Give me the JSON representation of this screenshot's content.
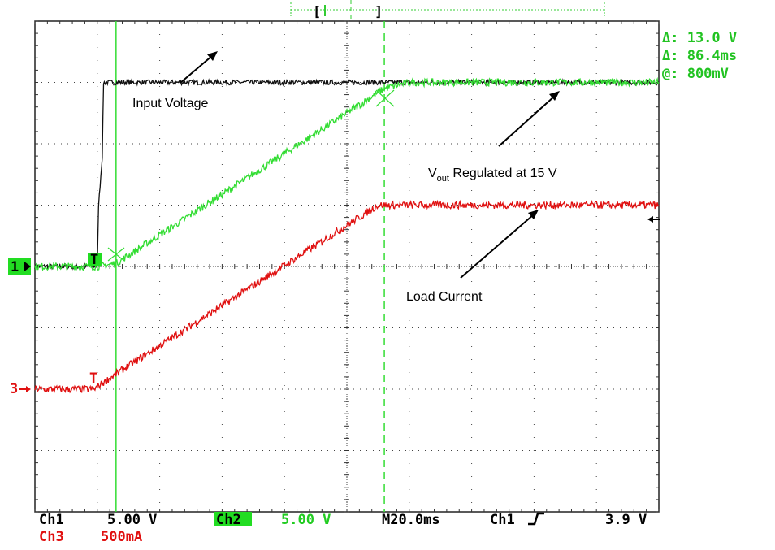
{
  "chart_data": {
    "type": "line",
    "x_divisions": 10,
    "y_divisions": 8,
    "series": [
      {
        "name": "Ch1",
        "color": "#111111",
        "x": [
          0,
          1.0,
          1.02,
          1.08,
          1.1,
          10
        ],
        "y": [
          4.0,
          4.0,
          5.0,
          5.8,
          7.0,
          7.0
        ]
      },
      {
        "name": "Ch2",
        "color": "#33dd33",
        "x": [
          0,
          1.0,
          1.3,
          5.6,
          6.0,
          10
        ],
        "y": [
          4.0,
          4.0,
          4.05,
          6.9,
          7.0,
          7.0
        ]
      },
      {
        "name": "Ch3",
        "color": "#e01010",
        "x": [
          0,
          0.95,
          1.3,
          5.5,
          5.9,
          10
        ],
        "y": [
          2.0,
          2.0,
          2.25,
          5.0,
          5.0,
          5.0
        ]
      }
    ],
    "noise": [
      0.04,
      0.06,
      0.06
    ],
    "cursor_vertical": 1.3,
    "cursor_dashed": 5.6,
    "ground_level": 4.0,
    "ch3_level": 2.0,
    "trigger_level": 5.0
  },
  "measurements": {
    "line1": "Δ: 13.0 V",
    "line2": "Δ: 86.4ms",
    "line3": "@: 800mV"
  },
  "annotations": {
    "input_voltage": "Input Voltage",
    "vout_main": "V",
    "vout_sub": "out",
    "vout_rest": " Regulated at 15 V",
    "load_current": "Load Current"
  },
  "markers": {
    "ch1": "1",
    "ch3": "3",
    "trigger": "T",
    "bracket_left": "[",
    "bracket_right": "]"
  },
  "status": {
    "ch1_label": "Ch1",
    "ch1_scale": "5.00 V",
    "ch2_label": "Ch2",
    "ch2_scale": "5.00 V",
    "timebase": "M20.0ms",
    "trig_source": "Ch1",
    "trig_level": "3.9 V",
    "ch3_label": "Ch3",
    "ch3_scale": "500mA"
  },
  "colors": {
    "ch1": "#111111",
    "ch2": "#33dd33",
    "ch3": "#e01010",
    "grid": "#222222",
    "highlight_bg": "#22dd22"
  }
}
